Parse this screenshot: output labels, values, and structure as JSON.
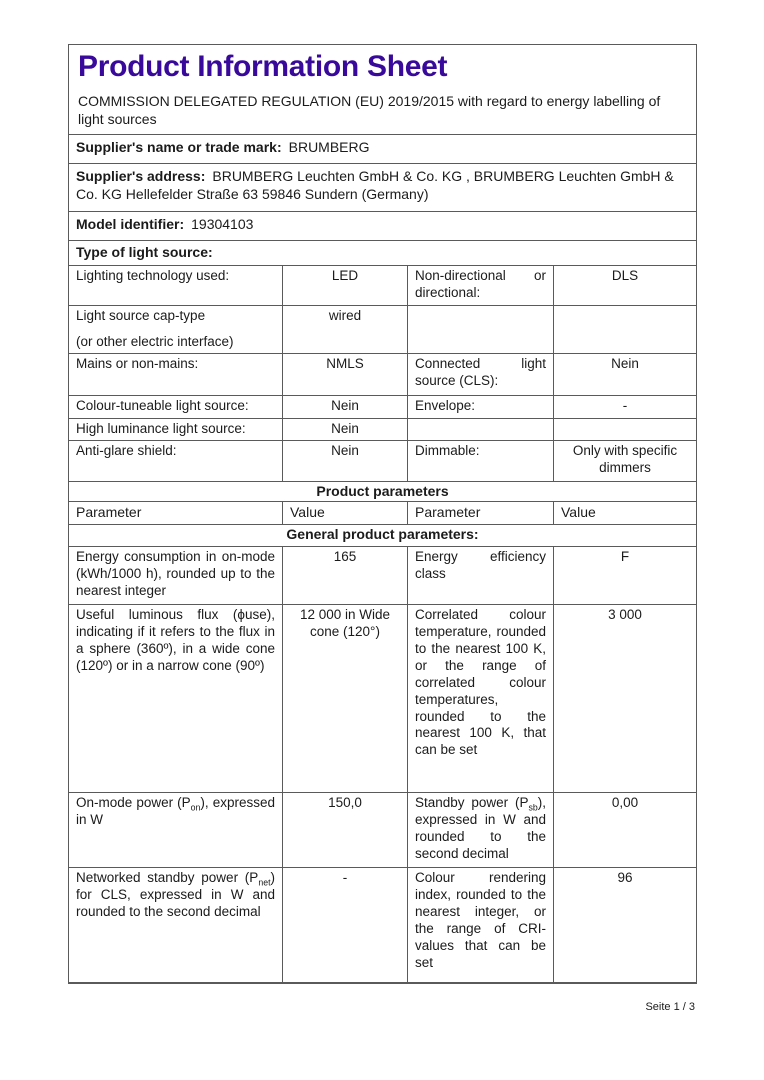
{
  "colors": {
    "title_accent": "#38099b",
    "table_border": "#5a5a5a",
    "text": "#1b1b1b",
    "page_background": "#ffffff"
  },
  "header": {
    "title": "Product Information Sheet",
    "subtitle": "COMMISSION DELEGATED REGULATION (EU) 2019/2015 with regard to energy labelling of light sources"
  },
  "supplier": {
    "name_label": "Supplier's name or trade mark:",
    "name_value": "BRUMBERG",
    "address_label": "Supplier's address:",
    "address_value": "BRUMBERG Leuchten GmbH & Co. KG , BRUMBERG Leuchten GmbH & Co. KG Hellefelder Straße 63 59846 Sundern (Germany)",
    "model_label": "Model identifier:",
    "model_value": "19304103"
  },
  "type_section": {
    "heading": "Type of light source:"
  },
  "type_rows": {
    "tech": {
      "label": "Lighting technology used:",
      "value": "LED",
      "label2": "Non-directional or directional:",
      "value2": "DLS"
    },
    "cap": {
      "label_line1": "Light source cap-type",
      "label_line2": "(or other electric interface)",
      "value": "wired"
    },
    "mains": {
      "label": "Mains or non-mains:",
      "value": "NMLS",
      "label2": "Connected light source (CLS):",
      "value2": "Nein"
    },
    "tuneable": {
      "label": "Colour-tuneable light source:",
      "value": "Nein",
      "label2": "Envelope:",
      "value2": "-"
    },
    "luminance": {
      "label": "High luminance light source:",
      "value": "Nein"
    },
    "antiglare": {
      "label": "Anti-glare shield:",
      "value": "Nein",
      "label2": "Dimmable:",
      "value2": "Only with specific dimmers"
    }
  },
  "product_params": {
    "section_heading": "Product parameters",
    "col_headers": {
      "p1": "Parameter",
      "v1": "Value",
      "p2": "Parameter",
      "v2": "Value"
    },
    "general_heading": "General product parameters:",
    "energy": {
      "label": "Energy consumption in on-mode (kWh/1000 h), rounded up to the nearest integer",
      "value": "165",
      "label2": "Energy efficiency class",
      "value2": "F"
    },
    "flux": {
      "label": "Useful luminous flux (ϕuse), indicating if it refers to the flux in a sphere (360º), in a wide cone (120º) or in a narrow cone (90º)",
      "value": "12 000 in Wide cone (120°)",
      "label2": "Correlated colour temperature, rounded to the nearest 100 K, or the range of correlated colour temperatures, rounded to the nearest 100 K, that can be set",
      "value2": "3 000"
    },
    "onmode": {
      "label_pre": "On-mode power (P",
      "label_sub": "on",
      "label_post": "), expressed in W",
      "value": "150,0",
      "label2_pre": "Standby power (P",
      "label2_sub": "sb",
      "label2_post": "), expressed in W and rounded to the second decimal",
      "value2": "0,00"
    },
    "networked": {
      "label_pre": "Networked standby power (P",
      "label_sub": "net",
      "label_post": ") for CLS, expressed in W and rounded to the second decimal",
      "value": "-",
      "label2": "Colour rendering index, rounded to the nearest integer, or the range of CRI-values that can be set",
      "value2": "96"
    }
  },
  "footer": {
    "page_label": "Seite 1 / 3"
  }
}
